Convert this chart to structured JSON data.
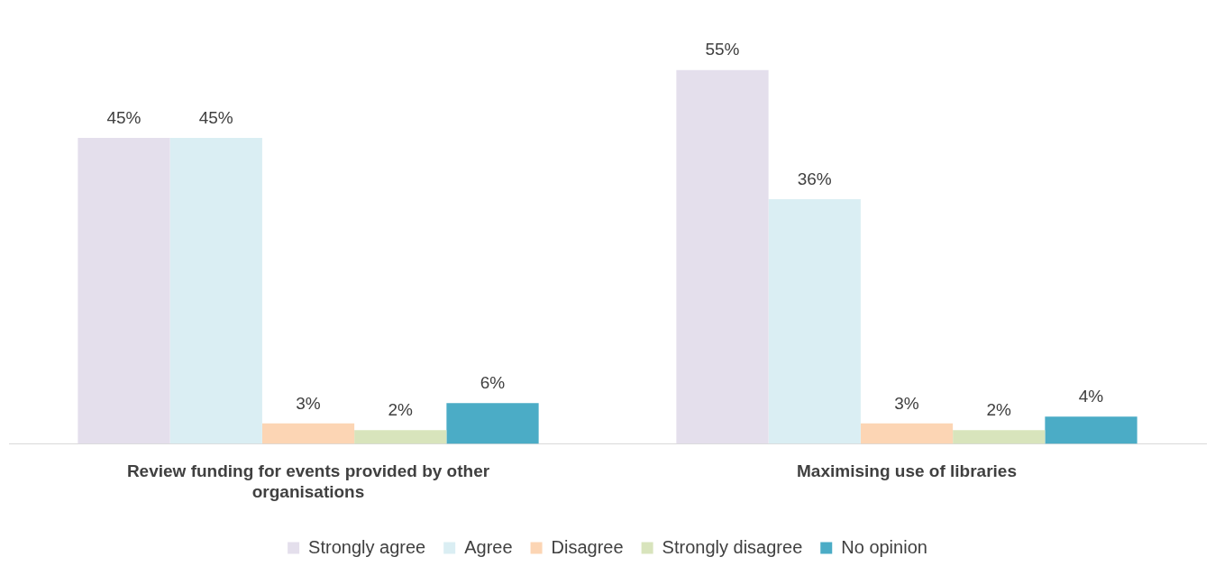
{
  "chart_data": {
    "type": "bar",
    "categories": [
      "Review funding for events provided by other organisations",
      "Maximising use of libraries"
    ],
    "series": [
      {
        "name": "Strongly agree",
        "color": "#e4dfec",
        "values": [
          45,
          55
        ],
        "value_labels": [
          "45%",
          "55%"
        ]
      },
      {
        "name": "Agree",
        "color": "#daeef3",
        "values": [
          45,
          36
        ],
        "value_labels": [
          "45%",
          "36%"
        ]
      },
      {
        "name": "Disagree",
        "color": "#fcd5b4",
        "values": [
          3,
          3
        ],
        "value_labels": [
          "3%",
          "3%"
        ]
      },
      {
        "name": "Strongly disagree",
        "color": "#d8e4bc",
        "values": [
          2,
          2
        ],
        "value_labels": [
          "2%",
          "2%"
        ]
      },
      {
        "name": "No opinion",
        "color": "#4bacc6",
        "values": [
          6,
          4
        ],
        "value_labels": [
          "6%",
          "4%"
        ]
      }
    ],
    "grid": false,
    "legend": "bottom"
  }
}
